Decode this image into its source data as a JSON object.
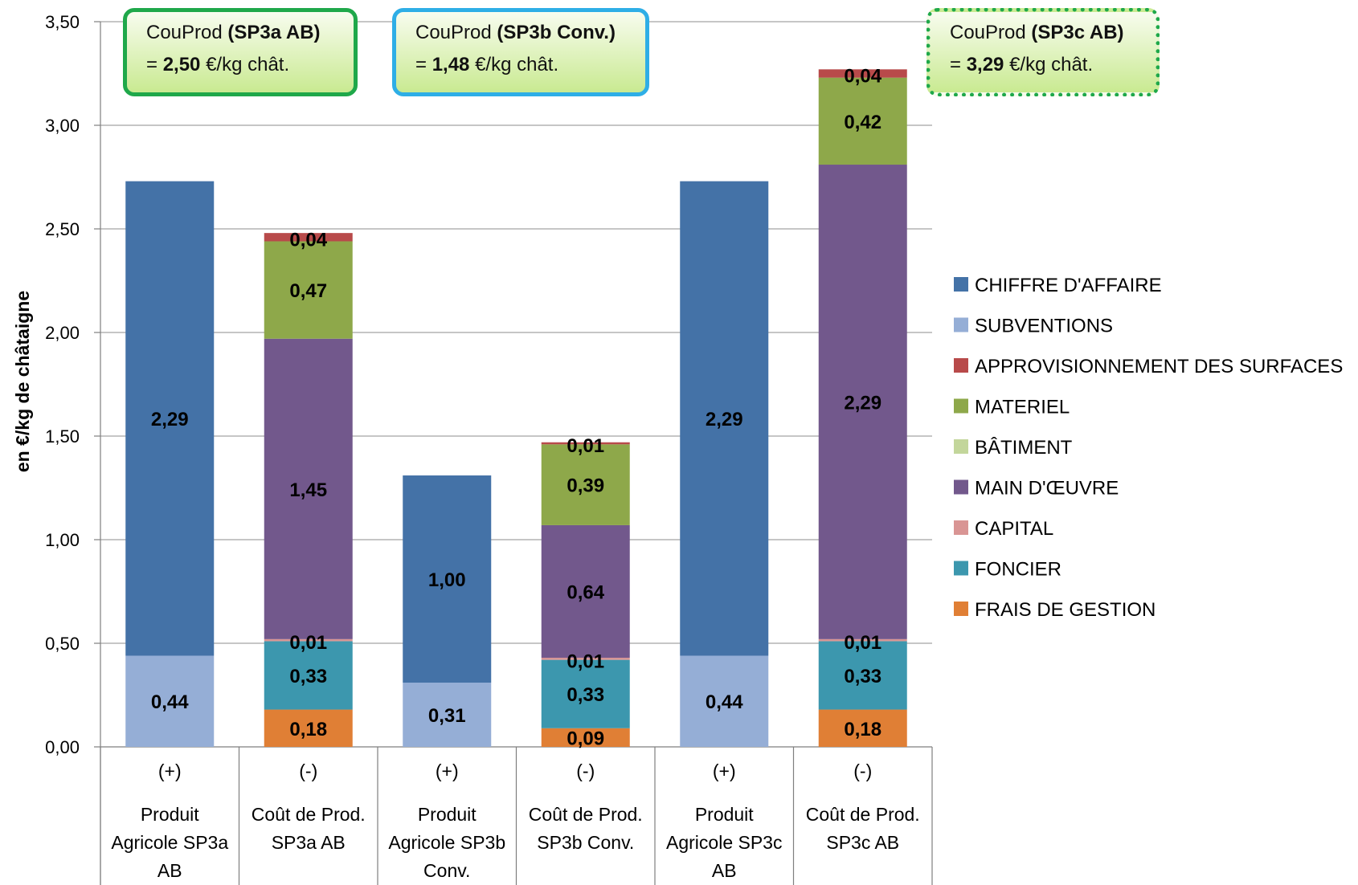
{
  "chart_data": {
    "type": "bar",
    "stacked": true,
    "ylabel": "en €/kg de châtaigne",
    "ylim": [
      0,
      3.5
    ],
    "yticks": [
      "0,00",
      "0,50",
      "1,00",
      "1,50",
      "2,00",
      "2,50",
      "3,00",
      "3,50"
    ],
    "ytick_values": [
      0,
      0.5,
      1.0,
      1.5,
      2.0,
      2.5,
      3.0,
      3.5
    ],
    "grid": true,
    "legend_position": "right",
    "categories": [
      {
        "sign": "(+)",
        "lines": [
          "Produit",
          "Agricole SP3a",
          "AB"
        ]
      },
      {
        "sign": "(-)",
        "lines": [
          "Coût de Prod.",
          "SP3a AB"
        ]
      },
      {
        "sign": "(+)",
        "lines": [
          "Produit",
          "Agricole SP3b",
          "Conv."
        ]
      },
      {
        "sign": "(-)",
        "lines": [
          "Coût de Prod.",
          "SP3b Conv."
        ]
      },
      {
        "sign": "(+)",
        "lines": [
          "Produit",
          "Agricole SP3c",
          "AB"
        ]
      },
      {
        "sign": "(-)",
        "lines": [
          "Coût de Prod.",
          "SP3c AB"
        ]
      }
    ],
    "series": [
      {
        "name": "FRAIS DE GESTION",
        "color": "#e07f35",
        "values": [
          0,
          0.18,
          0,
          0.09,
          0,
          0.18
        ],
        "labels": [
          "",
          "0,18",
          "",
          "0,09",
          "",
          "0,18"
        ]
      },
      {
        "name": "FONCIER",
        "color": "#3c97ae",
        "values": [
          0,
          0.33,
          0,
          0.33,
          0,
          0.33
        ],
        "labels": [
          "",
          "0,33",
          "",
          "0,33",
          "",
          "0,33"
        ]
      },
      {
        "name": "CAPITAL",
        "color": "#d99594",
        "values": [
          0,
          0.01,
          0,
          0.01,
          0,
          0.01
        ],
        "labels": [
          "",
          "0,01",
          "",
          "0,01",
          "",
          "0,01"
        ]
      },
      {
        "name": "MAIN D'ŒUVRE",
        "color": "#72588c",
        "values": [
          0,
          1.45,
          0,
          0.64,
          0,
          2.29
        ],
        "labels": [
          "",
          "1,45",
          "",
          "0,64",
          "",
          "2,29"
        ]
      },
      {
        "name": "BÂTIMENT",
        "color": "#c3d69b",
        "values": [
          0,
          0,
          0,
          0,
          0,
          0
        ],
        "labels": [
          "",
          "",
          "",
          "",
          "",
          ""
        ]
      },
      {
        "name": "MATERIEL",
        "color": "#8ea84a",
        "values": [
          0,
          0.47,
          0,
          0.39,
          0,
          0.42
        ],
        "labels": [
          "",
          "0,47",
          "",
          "0,39",
          "",
          "0,42"
        ]
      },
      {
        "name": "APPROVISIONNEMENT DES SURFACES",
        "color": "#b84a4a",
        "values": [
          0,
          0.04,
          0,
          0.01,
          0,
          0.04
        ],
        "labels": [
          "",
          "0,04",
          "",
          "0,01",
          "",
          "0,04"
        ]
      },
      {
        "name": "SUBVENTIONS",
        "color": "#95aed6",
        "values": [
          0.44,
          0,
          0.31,
          0,
          0.44,
          0
        ],
        "labels": [
          "0,44",
          "",
          "0,31",
          "",
          "0,44",
          ""
        ]
      },
      {
        "name": "CHIFFRE D'AFFAIRE",
        "color": "#4472a7",
        "values": [
          2.29,
          0,
          1.0,
          0,
          2.29,
          0
        ],
        "labels": [
          "2,29",
          "",
          "1,00",
          "",
          "2,29",
          ""
        ]
      }
    ],
    "legend_order": [
      "CHIFFRE D'AFFAIRE",
      "SUBVENTIONS",
      "APPROVISIONNEMENT DES SURFACES",
      "MATERIEL",
      "BÂTIMENT",
      "MAIN D'ŒUVRE",
      "CAPITAL",
      "FONCIER",
      "FRAIS DE GESTION"
    ]
  },
  "callouts": [
    {
      "prefix": "CouProd ",
      "bold_name": "(SP3a AB)",
      "eq": "= ",
      "bold_value": "2,50",
      "unit": " €/kg chât.",
      "border_color": "#1fa84a",
      "border_style": "solid"
    },
    {
      "prefix": "CouProd ",
      "bold_name": "(SP3b Conv.)",
      "eq": "= ",
      "bold_value": "1,48",
      "unit": " €/kg chât.",
      "border_color": "#2eaee6",
      "border_style": "solid"
    },
    {
      "prefix": "CouProd ",
      "bold_name": "(SP3c AB)",
      "eq": "= ",
      "bold_value": "3,29",
      "unit": " €/kg chât.",
      "border_color": "#1fa84a",
      "border_style": "dotted"
    }
  ]
}
